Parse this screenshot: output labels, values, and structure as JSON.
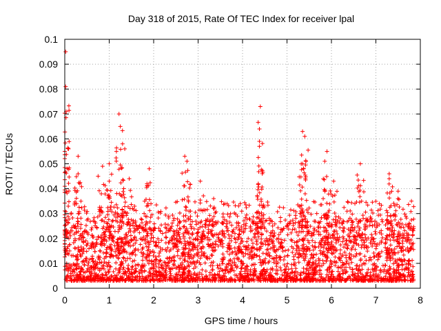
{
  "chart_data": {
    "type": "scatter",
    "title": "Day 318 of 2015, Rate Of TEC Index for receiver lpal",
    "xlabel": "GPS time / hours",
    "ylabel": "ROTI / TECUs",
    "xlim": [
      0,
      8
    ],
    "ylim": [
      0,
      0.1
    ],
    "x_ticks": [
      "0",
      "1",
      "2",
      "3",
      "4",
      "5",
      "6",
      "7",
      "8"
    ],
    "y_ticks": [
      "0",
      "0.01",
      "0.02",
      "0.03",
      "0.04",
      "0.05",
      "0.06",
      "0.07",
      "0.08",
      "0.09",
      "0.1"
    ],
    "grid": true,
    "marker": "+",
    "series_color": "#ff0000",
    "time_range": [
      0,
      7.85
    ],
    "baseline_range": [
      0.003,
      0.02
    ],
    "peaks": [
      {
        "x": 0.02,
        "y": 0.095
      },
      {
        "x": 0.02,
        "y": 0.081
      },
      {
        "x": 0.03,
        "y": 0.071
      },
      {
        "x": 0.0,
        "y": 0.055
      },
      {
        "x": 0.3,
        "y": 0.053
      },
      {
        "x": 0.3,
        "y": 0.046
      },
      {
        "x": 0.75,
        "y": 0.045
      },
      {
        "x": 0.85,
        "y": 0.049
      },
      {
        "x": 1.0,
        "y": 0.05
      },
      {
        "x": 1.0,
        "y": 0.043
      },
      {
        "x": 1.22,
        "y": 0.07
      },
      {
        "x": 1.25,
        "y": 0.065
      },
      {
        "x": 1.3,
        "y": 0.058
      },
      {
        "x": 1.35,
        "y": 0.056
      },
      {
        "x": 1.45,
        "y": 0.044
      },
      {
        "x": 1.85,
        "y": 0.042
      },
      {
        "x": 1.9,
        "y": 0.048
      },
      {
        "x": 2.7,
        "y": 0.053
      },
      {
        "x": 2.75,
        "y": 0.051
      },
      {
        "x": 3.05,
        "y": 0.043
      },
      {
        "x": 3.35,
        "y": 0.036
      },
      {
        "x": 3.95,
        "y": 0.034
      },
      {
        "x": 4.38,
        "y": 0.064
      },
      {
        "x": 4.4,
        "y": 0.073
      },
      {
        "x": 4.38,
        "y": 0.059
      },
      {
        "x": 5.35,
        "y": 0.063
      },
      {
        "x": 5.4,
        "y": 0.061
      },
      {
        "x": 5.35,
        "y": 0.05
      },
      {
        "x": 5.9,
        "y": 0.055
      },
      {
        "x": 5.85,
        "y": 0.051
      },
      {
        "x": 6.05,
        "y": 0.043
      },
      {
        "x": 6.65,
        "y": 0.05
      },
      {
        "x": 7.3,
        "y": 0.046
      },
      {
        "x": 7.3,
        "y": 0.044
      },
      {
        "x": 7.5,
        "y": 0.039
      },
      {
        "x": 7.8,
        "y": 0.035
      }
    ]
  }
}
